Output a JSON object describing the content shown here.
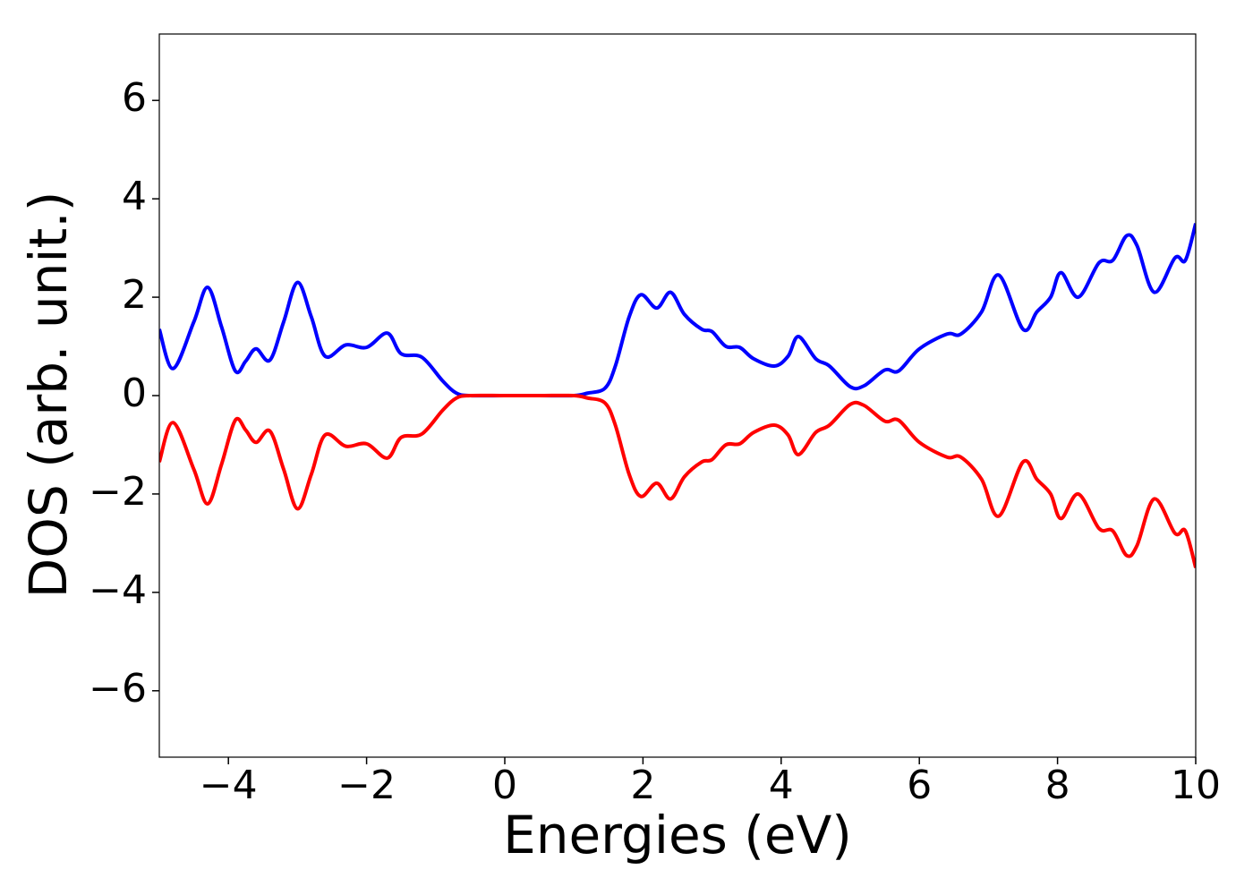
{
  "chart_data": {
    "type": "line",
    "xlabel": "Energies (eV)",
    "ylabel": "DOS (arb. unit.)",
    "x": [
      -5,
      -4.8,
      -4.5,
      -4.3,
      -4.1,
      -3.9,
      -3.75,
      -3.6,
      -3.4,
      -3.2,
      -3.0,
      -2.8,
      -2.6,
      -2.3,
      -2.0,
      -1.7,
      -1.5,
      -1.2,
      -0.9,
      -0.7,
      -0.5,
      0,
      0.5,
      1.0,
      1.2,
      1.45,
      1.6,
      1.8,
      1.97,
      2.2,
      2.4,
      2.6,
      2.85,
      3.0,
      3.2,
      3.4,
      3.6,
      3.9,
      4.1,
      4.25,
      4.5,
      4.7,
      5.0,
      5.2,
      5.5,
      5.7,
      6.0,
      6.4,
      6.6,
      6.9,
      7.15,
      7.5,
      7.7,
      7.9,
      8.05,
      8.3,
      8.6,
      8.8,
      9.0,
      9.15,
      9.4,
      9.7,
      9.85,
      10.0
    ],
    "series": [
      {
        "color": "#0000ff",
        "values": [
          1.35,
          0.55,
          1.5,
          2.2,
          1.4,
          0.5,
          0.7,
          0.95,
          0.72,
          1.5,
          2.3,
          1.6,
          0.8,
          1.03,
          0.98,
          1.27,
          0.85,
          0.78,
          0.3,
          0.05,
          0.0,
          0.0,
          0.0,
          0.0,
          0.05,
          0.15,
          0.6,
          1.6,
          2.05,
          1.78,
          2.1,
          1.65,
          1.35,
          1.3,
          1.0,
          0.98,
          0.75,
          0.6,
          0.8,
          1.2,
          0.75,
          0.6,
          0.18,
          0.2,
          0.52,
          0.5,
          0.95,
          1.25,
          1.25,
          1.7,
          2.45,
          1.35,
          1.7,
          2.0,
          2.5,
          2.0,
          2.7,
          2.75,
          3.25,
          3.05,
          2.1,
          2.8,
          2.75,
          3.5
        ]
      },
      {
        "color": "#ff0000",
        "values": [
          -1.35,
          -0.55,
          -1.5,
          -2.2,
          -1.4,
          -0.5,
          -0.7,
          -0.95,
          -0.72,
          -1.5,
          -2.3,
          -1.6,
          -0.8,
          -1.03,
          -0.98,
          -1.27,
          -0.85,
          -0.78,
          -0.3,
          -0.05,
          0.0,
          0.0,
          0.0,
          0.0,
          -0.05,
          -0.15,
          -0.6,
          -1.6,
          -2.05,
          -1.78,
          -2.1,
          -1.65,
          -1.35,
          -1.3,
          -1.0,
          -0.98,
          -0.75,
          -0.6,
          -0.8,
          -1.2,
          -0.75,
          -0.6,
          -0.18,
          -0.2,
          -0.52,
          -0.5,
          -0.95,
          -1.25,
          -1.25,
          -1.7,
          -2.45,
          -1.35,
          -1.7,
          -2.0,
          -2.5,
          -2.0,
          -2.7,
          -2.75,
          -3.25,
          -3.05,
          -2.1,
          -2.8,
          -2.75,
          -3.5
        ]
      }
    ],
    "xlim": [
      -5,
      10
    ],
    "ylim": [
      -7.35,
      7.35
    ],
    "xticks": [
      {
        "value": -4,
        "label": "−4"
      },
      {
        "value": -2,
        "label": "−2"
      },
      0,
      2,
      4,
      6,
      8,
      10
    ],
    "yticks": [
      {
        "value": -6,
        "label": "−6"
      },
      {
        "value": -4,
        "label": "−4"
      },
      {
        "value": -2,
        "label": "−2"
      },
      0,
      2,
      4,
      6
    ]
  }
}
